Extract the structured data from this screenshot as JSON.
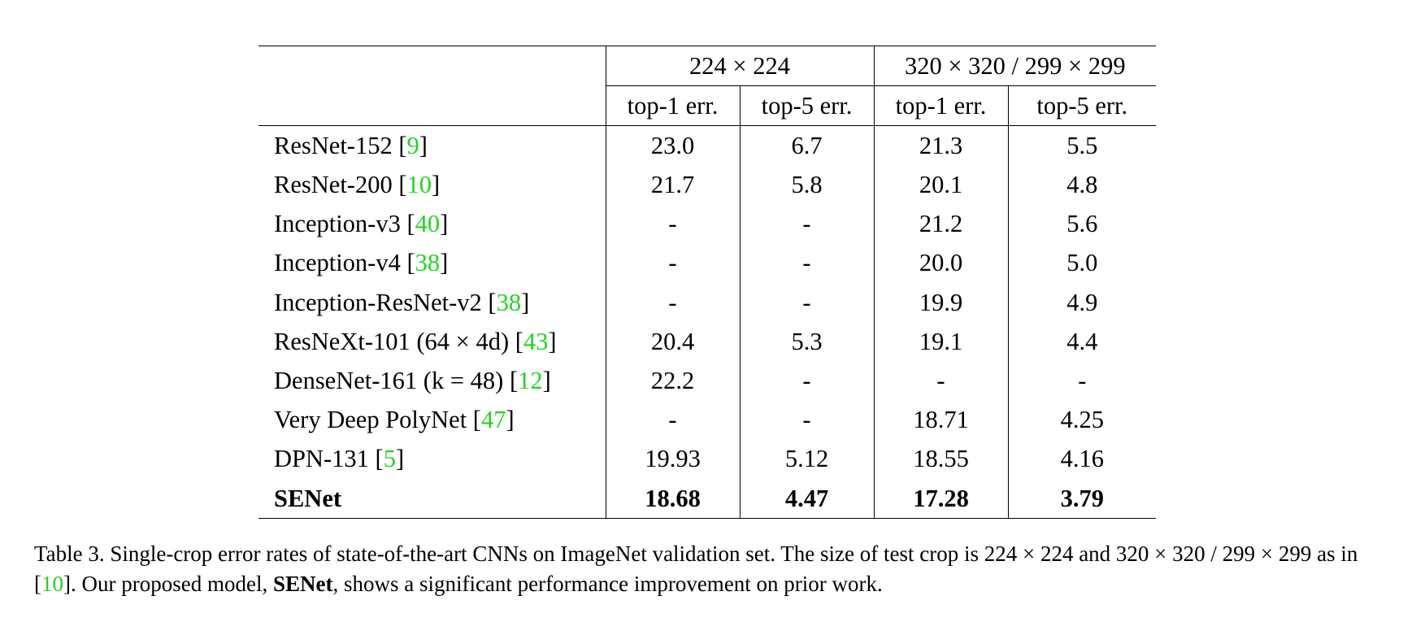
{
  "table": {
    "group_headers": [
      "224 × 224",
      "320 × 320 / 299 × 299"
    ],
    "metric_headers": [
      "top-1 err.",
      "top-5 err.",
      "top-1 err.",
      "top-5 err."
    ],
    "rows": [
      {
        "model": "ResNet-152",
        "ref": "9",
        "values": [
          "23.0",
          "6.7",
          "21.3",
          "5.5"
        ]
      },
      {
        "model": "ResNet-200",
        "ref": "10",
        "values": [
          "21.7",
          "5.8",
          "20.1",
          "4.8"
        ]
      },
      {
        "model": "Inception-v3",
        "ref": "40",
        "values": [
          "-",
          "-",
          "21.2",
          "5.6"
        ]
      },
      {
        "model": "Inception-v4",
        "ref": "38",
        "values": [
          "-",
          "-",
          "20.0",
          "5.0"
        ]
      },
      {
        "model": "Inception-ResNet-v2",
        "ref": "38",
        "values": [
          "-",
          "-",
          "19.9",
          "4.9"
        ]
      },
      {
        "model": "ResNeXt-101 (64 × 4d)",
        "ref": "43",
        "values": [
          "20.4",
          "5.3",
          "19.1",
          "4.4"
        ]
      },
      {
        "model": "DenseNet-161 (k = 48)",
        "ref": "12",
        "values": [
          "22.2",
          "-",
          "-",
          "-"
        ]
      },
      {
        "model": "Very Deep PolyNet",
        "ref": "47",
        "values": [
          "-",
          "-",
          "18.71",
          "4.25"
        ]
      },
      {
        "model": "DPN-131",
        "ref": "5",
        "values": [
          "19.93",
          "5.12",
          "18.55",
          "4.16"
        ]
      },
      {
        "model": "SENet",
        "ref": "",
        "values": [
          "18.68",
          "4.47",
          "17.28",
          "3.79"
        ]
      }
    ]
  },
  "caption": {
    "part1": "Table 3. Single-crop error rates of state-of-the-art CNNs on ImageNet validation set. The size of test crop is 224 × 224 and 320 × 320 / 299 × 299 as in [",
    "ref": "10",
    "part2": "]. Our proposed model, ",
    "bold": "SENet",
    "part3": ", shows a significant performance improvement on prior work."
  },
  "colors": {
    "text": "#000000",
    "citation_link": "#22d422",
    "background": "#ffffff"
  }
}
